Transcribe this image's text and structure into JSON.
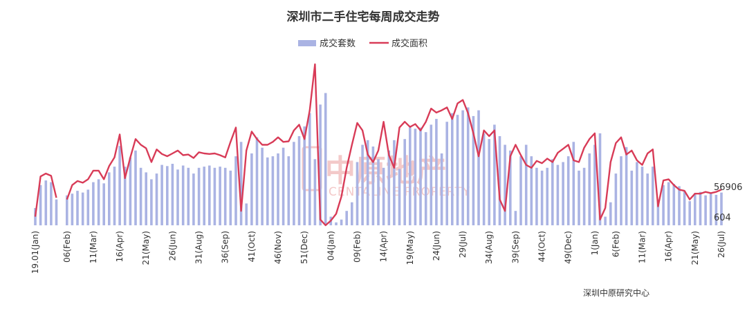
{
  "chart_data": {
    "type": "bar+line",
    "title": "深圳市二手住宅每周成交走势",
    "legend": {
      "position": "top",
      "items": [
        "成交套数",
        "成交面积"
      ]
    },
    "colors": {
      "bars": "#aab3e3",
      "line": "#d83b57"
    },
    "series": [
      {
        "name": "成交套数",
        "type": "bar",
        "values": [
          30,
          70,
          78,
          75,
          45,
          null,
          52,
          55,
          60,
          57,
          62,
          75,
          80,
          73,
          92,
          102,
          138,
          102,
          118,
          130,
          100,
          92,
          80,
          90,
          105,
          103,
          107,
          97,
          104,
          100,
          90,
          100,
          102,
          104,
          100,
          102,
          100,
          95,
          120,
          145,
          38,
          125,
          153,
          135,
          118,
          120,
          125,
          135,
          120,
          145,
          155,
          172,
          195,
          115,
          210,
          230,
          15,
          5,
          10,
          25,
          40,
          110,
          140,
          148,
          137,
          115,
          100,
          130,
          148,
          98,
          150,
          170,
          168,
          170,
          162,
          175,
          185,
          125,
          180,
          195,
          192,
          200,
          205,
          190,
          200,
          160,
          150,
          175,
          155,
          140,
          130,
          25,
          120,
          140,
          120,
          100,
          95,
          100,
          115,
          105,
          110,
          120,
          145,
          95,
          100,
          125,
          140,
          160,
          15,
          40,
          90,
          120,
          136,
          95,
          110,
          102,
          90,
          102,
          45,
          70,
          75,
          72,
          68,
          60,
          42,
          56,
          58,
          52,
          57,
          53,
          57
        ]
      },
      {
        "name": "成交面积",
        "type": "line",
        "values": [
          15,
          85,
          90,
          86,
          48,
          null,
          45,
          70,
          77,
          74,
          80,
          95,
          95,
          80,
          103,
          118,
          158,
          82,
          118,
          150,
          140,
          134,
          110,
          132,
          124,
          120,
          125,
          130,
          122,
          123,
          117,
          127,
          125,
          124,
          125,
          122,
          118,
          145,
          170,
          25,
          130,
          163,
          150,
          140,
          140,
          145,
          153,
          145,
          146,
          165,
          175,
          150,
          200,
          280,
          10,
          0,
          8,
          20,
          50,
          100,
          140,
          178,
          165,
          123,
          110,
          130,
          180,
          122,
          100,
          170,
          180,
          171,
          176,
          165,
          180,
          203,
          196,
          200,
          205,
          185,
          212,
          218,
          195,
          160,
          120,
          165,
          155,
          165,
          45,
          25,
          120,
          140,
          122,
          105,
          100,
          112,
          108,
          116,
          110,
          126,
          133,
          140,
          113,
          110,
          135,
          150,
          160,
          10,
          30,
          110,
          143,
          153,
          123,
          130,
          113,
          105,
          125,
          132,
          33,
          78,
          80,
          70,
          62,
          60,
          45,
          55,
          55,
          58,
          56,
          58,
          62
        ]
      }
    ],
    "x_tick_labels": [
      "19.01(Jan)",
      "06(Feb)",
      "11(Mar)",
      "16(Apr)",
      "21(May)",
      "26(Jun)",
      "31(Aug)",
      "36(Sep)",
      "41(Oct)",
      "46(Nov)",
      "51(Dec)",
      "04(Jan)",
      "09(Feb)",
      "14(Apr)",
      "19(May)",
      "24(Jun)",
      "29(Jul)",
      "34(Aug)",
      "39(Sep)",
      "44(Oct)",
      "49(Dec)",
      "1(Jan)",
      "6(Feb)",
      "11(Mar)",
      "16(Apr)",
      "21(May)",
      "26(Jul)"
    ],
    "x_tick_indices": [
      0,
      6,
      11,
      16,
      21,
      26,
      31,
      36,
      41,
      46,
      51,
      56,
      61,
      66,
      71,
      76,
      81,
      86,
      91,
      96,
      101,
      106,
      110,
      115,
      120,
      125,
      130
    ],
    "end_labels": {
      "line": "56906",
      "bar": "604"
    },
    "grid": false
  },
  "watermark": {
    "cn": "中原地产",
    "en": "CENTALINE PROPERTY"
  },
  "source": "深圳中原研究中心"
}
